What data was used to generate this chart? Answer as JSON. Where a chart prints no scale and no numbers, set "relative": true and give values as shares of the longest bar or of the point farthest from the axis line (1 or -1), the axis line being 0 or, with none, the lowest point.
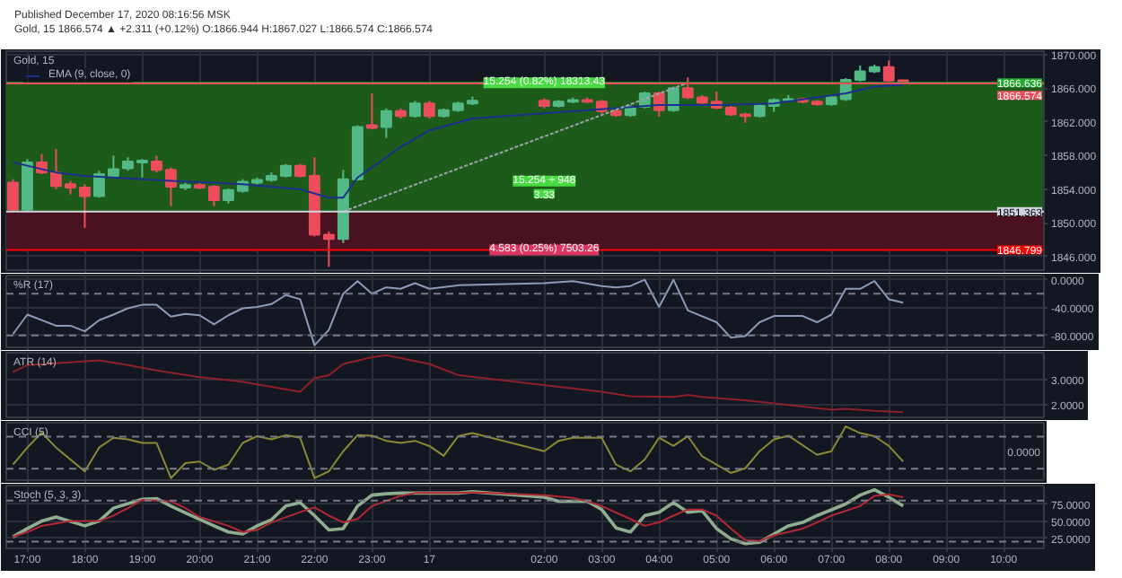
{
  "chart_data": [
    {
      "type": "candlestick",
      "title": "Gold, 15",
      "subtitle": "Gold, 15  1866.574 ▲ +2.311 (+0.12%)  O:1866.944 H:1867.027 L:1866.574 C:1866.574",
      "annotations": [
        "Published December 17, 2020 08:16:56 MSK",
        {
          "text": "15.254 (0.82%) 18313.43",
          "x": "2020-12-17T02:00",
          "y": 1866.636
        },
        "15.254 ÷ 948",
        "3.33",
        {
          "text": "4.583 (0.25%) 7503.26",
          "x": "2020-12-17T02:00",
          "y": 1846.799
        }
      ],
      "series": [
        {
          "type": "candlestick",
          "x": [
            "2020-12-16T16:45",
            "2020-12-16T17:00",
            "2020-12-16T17:15",
            "2020-12-16T17:30",
            "2020-12-16T17:45",
            "2020-12-16T18:00",
            "2020-12-16T18:15",
            "2020-12-16T18:30",
            "2020-12-16T18:45",
            "2020-12-16T19:00",
            "2020-12-16T19:15",
            "2020-12-16T19:30",
            "2020-12-16T19:45",
            "2020-12-16T20:00",
            "2020-12-16T20:15",
            "2020-12-16T20:30",
            "2020-12-16T20:45",
            "2020-12-16T21:00",
            "2020-12-16T21:15",
            "2020-12-16T21:30",
            "2020-12-16T21:45",
            "2020-12-16T22:00",
            "2020-12-16T22:15",
            "2020-12-16T22:30",
            "2020-12-16T22:45",
            "2020-12-16T23:00",
            "2020-12-16T23:15",
            "2020-12-16T23:30",
            "2020-12-16T23:45",
            "2020-12-17T00:00",
            "2020-12-17T00:15",
            "2020-12-17T00:30",
            "2020-12-17T00:45",
            "2020-12-17T02:00",
            "2020-12-17T02:15",
            "2020-12-17T02:30",
            "2020-12-17T02:45",
            "2020-12-17T03:00",
            "2020-12-17T03:15",
            "2020-12-17T03:30",
            "2020-12-17T03:45",
            "2020-12-17T04:00",
            "2020-12-17T04:15",
            "2020-12-17T04:30",
            "2020-12-17T04:45",
            "2020-12-17T05:00",
            "2020-12-17T05:15",
            "2020-12-17T05:30",
            "2020-12-17T05:45",
            "2020-12-17T06:00",
            "2020-12-17T06:15",
            "2020-12-17T06:30",
            "2020-12-17T06:45",
            "2020-12-17T07:00",
            "2020-12-17T07:15",
            "2020-12-17T07:30",
            "2020-12-17T07:45",
            "2020-12-17T08:00",
            "2020-12-17T08:15"
          ],
          "ohlc": [
            [
              1854.8,
              1855.2,
              1851.4,
              1851.6
            ],
            [
              1851.6,
              1857.6,
              1851.3,
              1857.2
            ],
            [
              1857.2,
              1858.2,
              1855.8,
              1856.0
            ],
            [
              1856.0,
              1858.8,
              1854.0,
              1854.4
            ],
            [
              1854.6,
              1855.0,
              1853.4,
              1854.2
            ],
            [
              1854.2,
              1854.6,
              1849.4,
              1853.2
            ],
            [
              1853.2,
              1856.2,
              1853.0,
              1855.8
            ],
            [
              1855.6,
              1858.0,
              1855.3,
              1856.4
            ],
            [
              1856.5,
              1857.8,
              1856.2,
              1857.3
            ],
            [
              1857.2,
              1857.6,
              1855.4,
              1857.4
            ],
            [
              1857.3,
              1858.0,
              1856.0,
              1856.3
            ],
            [
              1856.3,
              1856.6,
              1852.0,
              1854.3
            ],
            [
              1854.2,
              1854.8,
              1853.9,
              1854.5
            ],
            [
              1854.5,
              1854.8,
              1854.0,
              1854.2
            ],
            [
              1854.3,
              1854.5,
              1852.0,
              1852.7
            ],
            [
              1852.7,
              1854.1,
              1852.3,
              1853.9
            ],
            [
              1853.8,
              1855.2,
              1853.6,
              1854.9
            ],
            [
              1854.8,
              1855.4,
              1854.5,
              1855.1
            ],
            [
              1855.1,
              1856.0,
              1854.9,
              1855.6
            ],
            [
              1855.6,
              1857.0,
              1855.4,
              1856.8
            ],
            [
              1856.8,
              1857.0,
              1855.4,
              1855.6
            ],
            [
              1855.6,
              1857.8,
              1848.4,
              1848.6
            ],
            [
              1848.6,
              1849.0,
              1844.8,
              1848.1
            ],
            [
              1848.1,
              1856.3,
              1847.6,
              1855.2
            ],
            [
              1855.2,
              1861.6,
              1855.0,
              1861.4
            ],
            [
              1861.6,
              1865.4,
              1861.1,
              1861.3
            ],
            [
              1861.4,
              1863.6,
              1860.1,
              1863.3
            ],
            [
              1863.3,
              1863.6,
              1862.4,
              1862.7
            ],
            [
              1862.7,
              1864.5,
              1862.5,
              1864.2
            ],
            [
              1864.2,
              1864.5,
              1862.4,
              1862.7
            ],
            [
              1862.7,
              1863.6,
              1862.5,
              1863.4
            ],
            [
              1863.4,
              1864.4,
              1863.2,
              1864.2
            ],
            [
              1864.2,
              1865.0,
              1864.0,
              1864.5
            ],
            [
              1864.5,
              1864.8,
              1863.6,
              1863.9
            ],
            [
              1863.9,
              1864.6,
              1863.7,
              1864.4
            ],
            [
              1864.4,
              1864.9,
              1864.2,
              1864.6
            ],
            [
              1864.6,
              1864.9,
              1864.2,
              1864.4
            ],
            [
              1864.4,
              1864.6,
              1863.0,
              1863.3
            ],
            [
              1863.3,
              1863.5,
              1862.6,
              1862.8
            ],
            [
              1862.8,
              1864.0,
              1862.6,
              1863.8
            ],
            [
              1863.8,
              1865.6,
              1863.6,
              1865.4
            ],
            [
              1865.4,
              1865.6,
              1862.6,
              1863.4
            ],
            [
              1863.4,
              1866.2,
              1863.2,
              1866.0
            ],
            [
              1866.0,
              1867.3,
              1864.7,
              1864.9
            ],
            [
              1864.9,
              1865.2,
              1864.0,
              1864.3
            ],
            [
              1864.4,
              1865.6,
              1863.5,
              1863.7
            ],
            [
              1863.7,
              1863.9,
              1862.7,
              1862.9
            ],
            [
              1862.9,
              1863.1,
              1861.9,
              1862.7
            ],
            [
              1862.7,
              1864.1,
              1862.5,
              1863.9
            ],
            [
              1863.9,
              1864.8,
              1863.2,
              1864.6
            ],
            [
              1864.6,
              1865.2,
              1864.4,
              1864.7
            ],
            [
              1864.7,
              1864.9,
              1864.2,
              1864.4
            ],
            [
              1864.4,
              1864.6,
              1863.9,
              1864.1
            ],
            [
              1864.1,
              1865.1,
              1863.9,
              1864.9
            ],
            [
              1864.7,
              1867.2,
              1864.5,
              1867.0
            ],
            [
              1867.0,
              1868.7,
              1866.8,
              1868.0
            ],
            [
              1868.0,
              1868.8,
              1867.8,
              1868.5
            ],
            [
              1868.5,
              1869.3,
              1866.8,
              1866.9
            ],
            [
              1866.944,
              1867.027,
              1866.574,
              1866.574
            ]
          ],
          "colors": [
            "#eb4d5c",
            "#53b987",
            "#eb4d5c",
            "#eb4d5c",
            "#eb4d5c",
            "#eb4d5c",
            "#53b987",
            "#53b987",
            "#53b987",
            "#53b987",
            "#eb4d5c",
            "#eb4d5c",
            "#53b987",
            "#eb4d5c",
            "#eb4d5c",
            "#53b987",
            "#53b987",
            "#53b987",
            "#53b987",
            "#53b987",
            "#eb4d5c",
            "#eb4d5c",
            "#eb4d5c",
            "#53b987",
            "#53b987",
            "#eb4d5c",
            "#53b987",
            "#eb4d5c",
            "#53b987",
            "#eb4d5c",
            "#53b987",
            "#53b987",
            "#53b987",
            "#eb4d5c",
            "#53b987",
            "#53b987",
            "#eb4d5c",
            "#eb4d5c",
            "#eb4d5c",
            "#53b987",
            "#53b987",
            "#eb4d5c",
            "#53b987",
            "#eb4d5c",
            "#eb4d5c",
            "#eb4d5c",
            "#eb4d5c",
            "#eb4d5c",
            "#53b987",
            "#53b987",
            "#53b987",
            "#eb4d5c",
            "#eb4d5c",
            "#53b987",
            "#53b987",
            "#53b987",
            "#53b987",
            "#eb4d5c",
            "#eb4d5c"
          ]
        },
        {
          "type": "line",
          "name": "EMA (9, close, 0)",
          "color": "#1c2f8f",
          "x": [
            "2020-12-16T16:45",
            "2020-12-16T17:30",
            "2020-12-16T18:00",
            "2020-12-16T19:30",
            "2020-12-16T20:45",
            "2020-12-16T21:45",
            "2020-12-16T22:15",
            "2020-12-16T22:30",
            "2020-12-16T22:45",
            "2020-12-16T23:30",
            "2020-12-17T00:00",
            "2020-12-17T00:45",
            "2020-12-17T02:45",
            "2020-12-17T04:00",
            "2020-12-17T05:00",
            "2020-12-17T06:00",
            "2020-12-17T07:15",
            "2020-12-17T07:45",
            "2020-12-17T08:15"
          ],
          "values": [
            1857.2,
            1856.0,
            1855.6,
            1855.0,
            1854.6,
            1854.0,
            1853.0,
            1853.0,
            1855.4,
            1859.0,
            1861.0,
            1862.4,
            1863.4,
            1864.0,
            1864.0,
            1864.2,
            1865.4,
            1866.2,
            1866.4
          ]
        },
        {
          "type": "line",
          "color": "#9ea3ad",
          "line_style": "dotted",
          "x": [
            "2020-12-16T22:30",
            "2020-12-17T04:30"
          ],
          "values": [
            1851.363,
            1866.636
          ]
        }
      ],
      "bands": [
        {
          "axis": "y",
          "from": 1851.363,
          "to": 1866.636,
          "color": "#1d5b1b"
        },
        {
          "axis": "y",
          "from": 1846.799,
          "to": 1851.363,
          "color": "#4a1220"
        }
      ],
      "ref_lines": [
        {
          "axis": "y",
          "value": 1866.636,
          "label": "1866.636",
          "color": "#22ab2f"
        },
        {
          "axis": "y",
          "value": 1866.574,
          "label": "1866.574",
          "color": "#eb4d5c"
        },
        {
          "axis": "y",
          "value": 1851.363,
          "label": "1851.363",
          "color": "#d1d4dc"
        },
        {
          "axis": "y",
          "value": 1846.799,
          "label": "1846.799",
          "color": "#ff0000"
        }
      ],
      "xlim": [
        "2020-12-16T16:38",
        "2020-12-17T10:42"
      ],
      "ylim": [
        1844.4,
        1870.4
      ],
      "xticks": [
        {
          "value": "2020-12-16T17:00",
          "label": null
        },
        {
          "value": "2020-12-16T18:00",
          "label": null
        },
        {
          "value": "2020-12-16T19:00",
          "label": null
        },
        {
          "value": "2020-12-16T20:00",
          "label": null
        },
        {
          "value": "2020-12-16T21:00",
          "label": null
        },
        {
          "value": "2020-12-16T22:00",
          "label": null
        },
        {
          "value": "2020-12-16T23:00",
          "label": null
        },
        {
          "value": "2020-12-17T00:00",
          "label": null
        },
        {
          "value": "2020-12-17T02:00",
          "label": null
        },
        {
          "value": "2020-12-17T03:00",
          "label": null
        },
        {
          "value": "2020-12-17T04:00",
          "label": null
        },
        {
          "value": "2020-12-17T05:00",
          "label": null
        },
        {
          "value": "2020-12-17T06:00",
          "label": null
        },
        {
          "value": "2020-12-17T07:00",
          "label": null
        },
        {
          "value": "2020-12-17T08:00",
          "label": null
        },
        {
          "value": "2020-12-17T09:00",
          "label": null
        },
        {
          "value": "2020-12-17T10:00",
          "label": null
        }
      ],
      "yticks": [
        {
          "value": 1846,
          "label": "1846.000"
        },
        {
          "value": 1850,
          "label": "1850.000"
        },
        {
          "value": 1854,
          "label": "1854.000"
        },
        {
          "value": 1858,
          "label": "1858.000"
        },
        {
          "value": 1862,
          "label": "1862.000"
        },
        {
          "value": 1866,
          "label": "1866.000"
        },
        {
          "value": 1870,
          "label": "1870.000"
        }
      ],
      "grid": true,
      "legend": "top left",
      "tick_labels": "y"
    },
    {
      "type": "line",
      "title": "%R (17)",
      "series": [
        {
          "color": "#8c9bb5",
          "x": [
            "2020-12-16T16:45",
            "2020-12-16T17:00",
            "2020-12-16T17:30",
            "2020-12-16T17:45",
            "2020-12-16T18:00",
            "2020-12-16T18:15",
            "2020-12-16T18:30",
            "2020-12-16T18:45",
            "2020-12-16T19:00",
            "2020-12-16T19:15",
            "2020-12-16T19:30",
            "2020-12-16T19:45",
            "2020-12-16T20:00",
            "2020-12-16T20:15",
            "2020-12-16T20:30",
            "2020-12-16T20:45",
            "2020-12-16T21:00",
            "2020-12-16T21:15",
            "2020-12-16T21:30",
            "2020-12-16T21:45",
            "2020-12-16T22:00",
            "2020-12-16T22:15",
            "2020-12-16T22:30",
            "2020-12-16T22:45",
            "2020-12-16T23:00",
            "2020-12-16T23:15",
            "2020-12-16T23:30",
            "2020-12-16T23:45",
            "2020-12-17T00:00",
            "2020-12-17T00:30",
            "2020-12-17T02:00",
            "2020-12-17T02:30",
            "2020-12-17T03:00",
            "2020-12-17T03:15",
            "2020-12-17T03:30",
            "2020-12-17T03:45",
            "2020-12-17T04:00",
            "2020-12-17T04:15",
            "2020-12-17T04:30",
            "2020-12-17T05:00",
            "2020-12-17T05:15",
            "2020-12-17T05:30",
            "2020-12-17T05:45",
            "2020-12-17T06:00",
            "2020-12-17T06:30",
            "2020-12-17T06:45",
            "2020-12-17T07:00",
            "2020-12-17T07:15",
            "2020-12-17T07:30",
            "2020-12-17T07:45",
            "2020-12-17T08:00",
            "2020-12-17T08:15"
          ],
          "values": [
            -78,
            -50,
            -66,
            -66,
            -74,
            -58,
            -50,
            -41,
            -36,
            -36,
            -53,
            -49,
            -51,
            -64,
            -51,
            -41,
            -39,
            -35,
            -22,
            -28,
            -94,
            -72,
            -20,
            -2,
            -20,
            -11,
            -13,
            -5,
            -13,
            -8,
            -5,
            -2,
            -9,
            -11,
            -9,
            0,
            -39,
            0,
            -44,
            -61,
            -83,
            -81,
            -61,
            -52,
            -52,
            -61,
            -50,
            -13,
            -13,
            -2,
            -28,
            -33
          ]
        }
      ],
      "ref_lines": [
        {
          "axis": "y",
          "value": -20,
          "color": "#787b86",
          "line_style": "dashed"
        },
        {
          "axis": "y",
          "value": -80,
          "color": "#787b86",
          "line_style": "dashed"
        }
      ],
      "xlim": [
        "2020-12-16T16:38",
        "2020-12-17T10:42"
      ],
      "ylim": [
        -97,
        6
      ],
      "xticks": [
        {
          "value": "2020-12-16T17:00",
          "label": null
        },
        {
          "value": "2020-12-16T18:00",
          "label": null
        },
        {
          "value": "2020-12-16T19:00",
          "label": null
        },
        {
          "value": "2020-12-16T20:00",
          "label": null
        },
        {
          "value": "2020-12-16T21:00",
          "label": null
        },
        {
          "value": "2020-12-16T22:00",
          "label": null
        },
        {
          "value": "2020-12-16T23:00",
          "label": null
        },
        {
          "value": "2020-12-17T00:00",
          "label": null
        },
        {
          "value": "2020-12-17T02:00",
          "label": null
        },
        {
          "value": "2020-12-17T03:00",
          "label": null
        },
        {
          "value": "2020-12-17T04:00",
          "label": null
        },
        {
          "value": "2020-12-17T05:00",
          "label": null
        },
        {
          "value": "2020-12-17T06:00",
          "label": null
        },
        {
          "value": "2020-12-17T07:00",
          "label": null
        },
        {
          "value": "2020-12-17T08:00",
          "label": null
        },
        {
          "value": "2020-12-17T09:00",
          "label": null
        },
        {
          "value": "2020-12-17T10:00",
          "label": null
        }
      ],
      "yticks": [
        {
          "value": 0,
          "label": "0.0000"
        },
        {
          "value": -40,
          "label": "-40.0000"
        },
        {
          "value": -80,
          "label": "-80.0000"
        }
      ],
      "grid": true,
      "tick_labels": "y"
    },
    {
      "type": "line",
      "title": "ATR (14)",
      "series": [
        {
          "color": "#8e1f2b",
          "x": [
            "2020-12-16T16:45",
            "2020-12-16T17:00",
            "2020-12-16T17:30",
            "2020-12-16T18:15",
            "2020-12-16T18:45",
            "2020-12-16T19:15",
            "2020-12-16T20:00",
            "2020-12-16T20:45",
            "2020-12-16T21:45",
            "2020-12-16T22:00",
            "2020-12-16T22:15",
            "2020-12-16T22:30",
            "2020-12-16T23:00",
            "2020-12-16T23:15",
            "2020-12-17T00:00",
            "2020-12-17T00:30",
            "2020-12-17T03:00",
            "2020-12-17T03:30",
            "2020-12-17T04:15",
            "2020-12-17T04:30",
            "2020-12-17T04:45",
            "2020-12-17T05:30",
            "2020-12-17T06:15",
            "2020-12-17T07:00",
            "2020-12-17T07:15",
            "2020-12-17T07:45",
            "2020-12-17T08:15"
          ],
          "values": [
            3.33,
            3.6,
            3.68,
            3.79,
            3.6,
            3.39,
            3.12,
            2.93,
            2.53,
            3.07,
            3.2,
            3.65,
            3.92,
            4.0,
            3.65,
            3.2,
            2.53,
            2.35,
            2.32,
            2.4,
            2.32,
            2.19,
            2.0,
            1.81,
            1.84,
            1.76,
            1.71
          ]
        }
      ],
      "xlim": [
        "2020-12-16T16:38",
        "2020-12-17T10:42"
      ],
      "ylim": [
        1.5,
        4.1
      ],
      "xticks": [
        {
          "value": "2020-12-16T17:00",
          "label": null
        },
        {
          "value": "2020-12-16T18:00",
          "label": null
        },
        {
          "value": "2020-12-16T19:00",
          "label": null
        },
        {
          "value": "2020-12-16T20:00",
          "label": null
        },
        {
          "value": "2020-12-16T21:00",
          "label": null
        },
        {
          "value": "2020-12-16T22:00",
          "label": null
        },
        {
          "value": "2020-12-16T23:00",
          "label": null
        },
        {
          "value": "2020-12-17T00:00",
          "label": null
        },
        {
          "value": "2020-12-17T02:00",
          "label": null
        },
        {
          "value": "2020-12-17T03:00",
          "label": null
        },
        {
          "value": "2020-12-17T04:00",
          "label": null
        },
        {
          "value": "2020-12-17T05:00",
          "label": null
        },
        {
          "value": "2020-12-17T06:00",
          "label": null
        },
        {
          "value": "2020-12-17T07:00",
          "label": null
        },
        {
          "value": "2020-12-17T08:00",
          "label": null
        },
        {
          "value": "2020-12-17T09:00",
          "label": null
        },
        {
          "value": "2020-12-17T10:00",
          "label": null
        }
      ],
      "yticks": [
        {
          "value": 3,
          "label": "3.0000"
        },
        {
          "value": 2,
          "label": "2.0000"
        }
      ],
      "grid": true,
      "tick_labels": "y"
    },
    {
      "type": "line",
      "title": "CCI (5)",
      "relative": true,
      "annotations": [
        "0.0000"
      ],
      "series": [
        {
          "color": "#8a8a35",
          "x": [
            "2020-12-16T16:45",
            "2020-12-16T17:00",
            "2020-12-16T17:15",
            "2020-12-16T17:30",
            "2020-12-16T18:00",
            "2020-12-16T18:15",
            "2020-12-16T18:30",
            "2020-12-16T18:45",
            "2020-12-16T19:00",
            "2020-12-16T19:15",
            "2020-12-16T19:30",
            "2020-12-16T19:45",
            "2020-12-16T20:00",
            "2020-12-16T20:15",
            "2020-12-16T20:30",
            "2020-12-16T20:45",
            "2020-12-16T21:00",
            "2020-12-16T21:15",
            "2020-12-16T21:30",
            "2020-12-16T21:45",
            "2020-12-16T22:00",
            "2020-12-16T22:15",
            "2020-12-16T22:30",
            "2020-12-16T22:45",
            "2020-12-16T23:00",
            "2020-12-16T23:15",
            "2020-12-16T23:30",
            "2020-12-16T23:45",
            "2020-12-17T00:00",
            "2020-12-17T00:15",
            "2020-12-17T00:30",
            "2020-12-17T00:45",
            "2020-12-17T02:00",
            "2020-12-17T02:15",
            "2020-12-17T02:30",
            "2020-12-17T03:00",
            "2020-12-17T03:15",
            "2020-12-17T03:30",
            "2020-12-17T03:45",
            "2020-12-17T04:00",
            "2020-12-17T04:15",
            "2020-12-17T04:30",
            "2020-12-17T04:45",
            "2020-12-17T05:00",
            "2020-12-17T05:15",
            "2020-12-17T05:30",
            "2020-12-17T05:45",
            "2020-12-17T06:00",
            "2020-12-17T06:15",
            "2020-12-17T06:45",
            "2020-12-17T07:00",
            "2020-12-17T07:15",
            "2020-12-17T07:30",
            "2020-12-17T07:45",
            "2020-12-17T08:00",
            "2020-12-17T08:15"
          ],
          "values": [
            0.26,
            0.59,
            0.88,
            0.59,
            0.13,
            0.59,
            0.78,
            0.75,
            0.68,
            0.68,
            0,
            0.29,
            0.32,
            0.16,
            0.26,
            0.68,
            0.81,
            0.75,
            0.83,
            0.78,
            0,
            0.13,
            0.52,
            0.83,
            0.82,
            0.72,
            0.68,
            0.72,
            0.62,
            0.43,
            0.81,
            0.87,
            0.52,
            0.72,
            0.78,
            0.78,
            0.26,
            0.13,
            0.36,
            0.78,
            0.62,
            0.81,
            0.42,
            0.26,
            0.1,
            0.19,
            0.52,
            0.75,
            0.82,
            0.45,
            0.52,
            1,
            0.87,
            0.81,
            0.62,
            0.32
          ]
        }
      ],
      "ref_lines": [
        {
          "axis": "y",
          "value": 0.8,
          "color": "#787b86",
          "line_style": "dashed"
        },
        {
          "axis": "y",
          "value": 0.18,
          "color": "#787b86",
          "line_style": "dashed"
        }
      ],
      "xlim": [
        "2020-12-16T16:38",
        "2020-12-17T10:42"
      ],
      "xticks": [
        {
          "value": "2020-12-16T17:00",
          "label": null
        },
        {
          "value": "2020-12-16T18:00",
          "label": null
        },
        {
          "value": "2020-12-16T19:00",
          "label": null
        },
        {
          "value": "2020-12-16T20:00",
          "label": null
        },
        {
          "value": "2020-12-16T21:00",
          "label": null
        },
        {
          "value": "2020-12-16T22:00",
          "label": null
        },
        {
          "value": "2020-12-16T23:00",
          "label": null
        },
        {
          "value": "2020-12-17T00:00",
          "label": null
        },
        {
          "value": "2020-12-17T02:00",
          "label": null
        },
        {
          "value": "2020-12-17T03:00",
          "label": null
        },
        {
          "value": "2020-12-17T04:00",
          "label": null
        },
        {
          "value": "2020-12-17T05:00",
          "label": null
        },
        {
          "value": "2020-12-17T06:00",
          "label": null
        },
        {
          "value": "2020-12-17T07:00",
          "label": null
        },
        {
          "value": "2020-12-17T08:00",
          "label": null
        },
        {
          "value": "2020-12-17T09:00",
          "label": null
        },
        {
          "value": "2020-12-17T10:00",
          "label": null
        }
      ],
      "grid": "x",
      "tick_labels": false
    },
    {
      "type": "line",
      "title": "Stoch (5, 3, 3)",
      "series": [
        {
          "color": "#8fae8f",
          "x": [
            "2020-12-16T16:45",
            "2020-12-16T17:00",
            "2020-12-16T17:15",
            "2020-12-16T17:30",
            "2020-12-16T18:00",
            "2020-12-16T18:15",
            "2020-12-16T18:30",
            "2020-12-16T19:00",
            "2020-12-16T19:15",
            "2020-12-16T19:30",
            "2020-12-16T19:45",
            "2020-12-16T20:15",
            "2020-12-16T20:30",
            "2020-12-16T20:45",
            "2020-12-16T21:00",
            "2020-12-16T21:15",
            "2020-12-16T21:30",
            "2020-12-16T21:45",
            "2020-12-16T22:00",
            "2020-12-16T22:15",
            "2020-12-16T22:30",
            "2020-12-16T22:45",
            "2020-12-16T23:00",
            "2020-12-16T23:15",
            "2020-12-16T23:30",
            "2020-12-17T00:00",
            "2020-12-17T00:30",
            "2020-12-17T00:45",
            "2020-12-17T02:00",
            "2020-12-17T02:15",
            "2020-12-17T02:45",
            "2020-12-17T03:00",
            "2020-12-17T03:15",
            "2020-12-17T03:30",
            "2020-12-17T03:45",
            "2020-12-17T04:00",
            "2020-12-17T04:15",
            "2020-12-17T04:30",
            "2020-12-17T04:45",
            "2020-12-17T05:00",
            "2020-12-17T05:15",
            "2020-12-17T05:30",
            "2020-12-17T05:45",
            "2020-12-17T06:00",
            "2020-12-17T06:15",
            "2020-12-17T06:30",
            "2020-12-17T06:45",
            "2020-12-17T07:15",
            "2020-12-17T07:30",
            "2020-12-17T07:45",
            "2020-12-17T08:00",
            "2020-12-17T08:15"
          ],
          "values": [
            27,
            39,
            50,
            56,
            43,
            50,
            69,
            82,
            83,
            72,
            62,
            43,
            34,
            31,
            43,
            52,
            72,
            77,
            58,
            37,
            39,
            72,
            88,
            90,
            91,
            91,
            91,
            93,
            85,
            79,
            79,
            67,
            40,
            34,
            58,
            63,
            77,
            63,
            65,
            39,
            24,
            17,
            19,
            31,
            43,
            48,
            58,
            75,
            88,
            96,
            85,
            72
          ]
        },
        {
          "color": "#b22833",
          "x": [
            "2020-12-16T16:45",
            "2020-12-16T17:00",
            "2020-12-16T17:15",
            "2020-12-16T17:45",
            "2020-12-16T18:00",
            "2020-12-16T18:15",
            "2020-12-16T18:30",
            "2020-12-16T18:45",
            "2020-12-16T19:00",
            "2020-12-16T19:30",
            "2020-12-16T19:45",
            "2020-12-16T20:00",
            "2020-12-16T20:30",
            "2020-12-16T20:45",
            "2020-12-16T21:00",
            "2020-12-16T21:15",
            "2020-12-16T21:45",
            "2020-12-16T22:00",
            "2020-12-16T22:15",
            "2020-12-16T22:30",
            "2020-12-16T22:45",
            "2020-12-16T23:00",
            "2020-12-16T23:30",
            "2020-12-16T23:45",
            "2020-12-17T00:30",
            "2020-12-17T00:45",
            "2020-12-17T02:00",
            "2020-12-17T02:30",
            "2020-12-17T02:45",
            "2020-12-17T03:00",
            "2020-12-17T03:30",
            "2020-12-17T03:45",
            "2020-12-17T04:00",
            "2020-12-17T04:15",
            "2020-12-17T04:30",
            "2020-12-17T04:45",
            "2020-12-17T05:00",
            "2020-12-17T05:15",
            "2020-12-17T05:30",
            "2020-12-17T05:45",
            "2020-12-17T06:00",
            "2020-12-17T06:30",
            "2020-12-17T06:45",
            "2020-12-17T07:00",
            "2020-12-17T07:30",
            "2020-12-17T07:45",
            "2020-12-17T08:00",
            "2020-12-17T08:15"
          ],
          "values": [
            27,
            34,
            43,
            50,
            50,
            50,
            58,
            69,
            81,
            79,
            69,
            56,
            43,
            34,
            37,
            48,
            63,
            70,
            58,
            48,
            53,
            72,
            87,
            91,
            91,
            92,
            88,
            84,
            79,
            72,
            53,
            43,
            48,
            58,
            67,
            67,
            58,
            39,
            22,
            21,
            29,
            39,
            48,
            58,
            72,
            87,
            89,
            85
          ]
        }
      ],
      "ref_lines": [
        {
          "axis": "y",
          "value": 80,
          "color": "#787b86",
          "line_style": "dashed"
        },
        {
          "axis": "y",
          "value": 20,
          "color": "#787b86",
          "line_style": "dashed"
        }
      ],
      "xlim": [
        "2020-12-16T16:38",
        "2020-12-17T10:42"
      ],
      "ylim": [
        10,
        102
      ],
      "xticks": [
        {
          "value": "2020-12-16T17:00",
          "label": "17:00"
        },
        {
          "value": "2020-12-16T18:00",
          "label": "18:00"
        },
        {
          "value": "2020-12-16T19:00",
          "label": "19:00"
        },
        {
          "value": "2020-12-16T20:00",
          "label": "20:00"
        },
        {
          "value": "2020-12-16T21:00",
          "label": "21:00"
        },
        {
          "value": "2020-12-16T22:00",
          "label": "22:00"
        },
        {
          "value": "2020-12-16T23:00",
          "label": "23:00"
        },
        {
          "value": "2020-12-17T00:00",
          "label": "17"
        },
        {
          "value": "2020-12-17T02:00",
          "label": "02:00"
        },
        {
          "value": "2020-12-17T03:00",
          "label": "03:00"
        },
        {
          "value": "2020-12-17T04:00",
          "label": "04:00"
        },
        {
          "value": "2020-12-17T05:00",
          "label": "05:00"
        },
        {
          "value": "2020-12-17T06:00",
          "label": "06:00"
        },
        {
          "value": "2020-12-17T07:00",
          "label": "07:00"
        },
        {
          "value": "2020-12-17T08:00",
          "label": "08:00"
        },
        {
          "value": "2020-12-17T09:00",
          "label": "09:00"
        },
        {
          "value": "2020-12-17T10:00",
          "label": "10:00"
        }
      ],
      "yticks": [
        {
          "value": 75,
          "label": "75.0000"
        },
        {
          "value": 50,
          "label": "50.0000"
        },
        {
          "value": 25,
          "label": "25.0000"
        }
      ],
      "grid": true
    }
  ]
}
